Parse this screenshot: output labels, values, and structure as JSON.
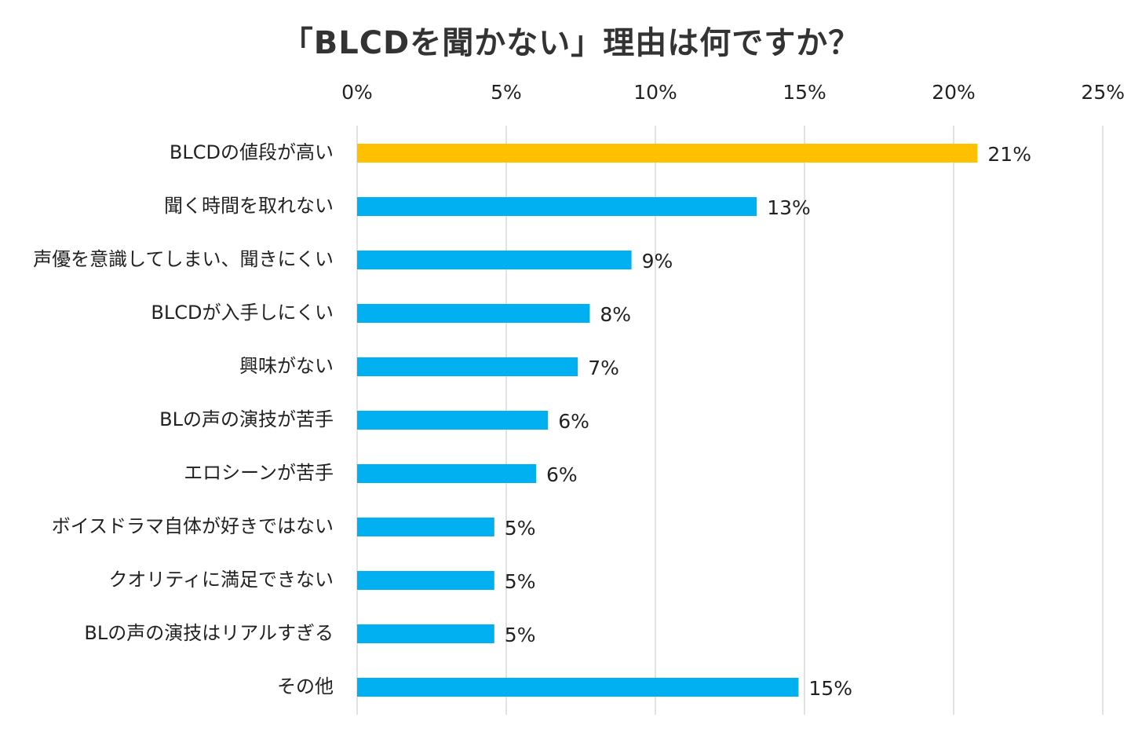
{
  "chart_data": {
    "type": "bar",
    "orientation": "horizontal",
    "title": "「BLCDを聞かない」理由は何ですか？",
    "xlabel": "",
    "ylabel": "",
    "xlim": [
      0,
      25
    ],
    "ticks": [
      0,
      5,
      10,
      15,
      20,
      25
    ],
    "tick_labels": [
      "0%",
      "5%",
      "10%",
      "15%",
      "20%",
      "25%"
    ],
    "grid": true,
    "axis_position": "top",
    "categories": [
      "BLCDの値段が高い",
      "聞く時間を取れない",
      "声優を意識してしまい、聞きにくい",
      "BLCDが入手しにくい",
      "興味がない",
      "BLの声の演技が苦手",
      "エロシーンが苦手",
      "ボイスドラマ自体が好きではない",
      "クオリティに満足できない",
      "BLの声の演技はリアルすぎる",
      "その他"
    ],
    "values": [
      20.8,
      13.4,
      9.2,
      7.8,
      7.4,
      6.4,
      6.0,
      4.6,
      4.6,
      4.6,
      14.8
    ],
    "data_labels": [
      "21%",
      "13%",
      "9%",
      "8%",
      "7%",
      "6%",
      "6%",
      "5%",
      "5%",
      "5%",
      "15%"
    ],
    "colors": {
      "highlight": "#FFC000",
      "default": "#00B0F0",
      "gridline": "#D9D9D9"
    },
    "highlight_index": 0
  }
}
